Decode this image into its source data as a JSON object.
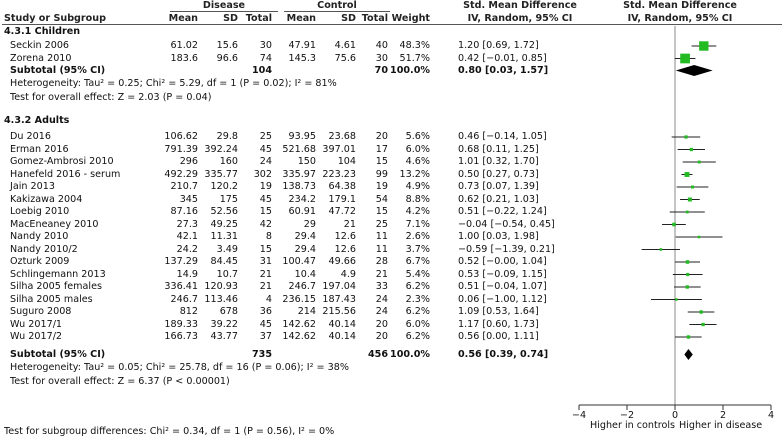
{
  "headers": {
    "group_disease": "Disease",
    "group_control": "Control",
    "study": "Study or Subgroup",
    "mean1": "Mean",
    "sd1": "SD",
    "total1": "Total",
    "mean2": "Mean",
    "sd2": "SD",
    "total2": "Total",
    "weight": "Weight",
    "smd_title": "Std. Mean Difference",
    "smd_sub": "IV, Random, 95% CI",
    "plot_title": "Std. Mean Difference",
    "plot_sub": "IV, Random, 95% CI"
  },
  "subgroups": [
    {
      "name": "4.3.1 Children",
      "studies": [
        {
          "study": "Seckin 2006",
          "m1": "61.02",
          "sd1": "15.6",
          "n1": "30",
          "m2": "47.91",
          "sd2": "4.61",
          "n2": "40",
          "weight": "48.3%",
          "ci": "1.20 [0.69, 1.72]"
        },
        {
          "study": "Zorena 2010",
          "m1": "183.6",
          "sd1": "96.6",
          "n1": "74",
          "m2": "145.3",
          "sd2": "75.6",
          "n2": "30",
          "weight": "51.7%",
          "ci": "0.42 [−0.01, 0.85]"
        }
      ],
      "subtotal": {
        "label": "Subtotal (95% CI)",
        "n1": "104",
        "n2": "70",
        "weight": "100.0%",
        "ci": "0.80 [0.03, 1.57]"
      },
      "heterogeneity": "Heterogeneity: Tau² = 0.25; Chi² = 5.29, df = 1 (P = 0.02); I² = 81%",
      "overall": "Test for overall effect: Z = 2.03 (P = 0.04)"
    },
    {
      "name": "4.3.2 Adults",
      "studies": [
        {
          "study": "Du 2016",
          "m1": "106.62",
          "sd1": "29.8",
          "n1": "25",
          "m2": "93.95",
          "sd2": "23.68",
          "n2": "20",
          "weight": "5.6%",
          "ci": "0.46 [−0.14, 1.05]"
        },
        {
          "study": "Erman 2016",
          "m1": "791.39",
          "sd1": "392.24",
          "n1": "45",
          "m2": "521.68",
          "sd2": "397.01",
          "n2": "17",
          "weight": "6.0%",
          "ci": "0.68 [0.11, 1.25]"
        },
        {
          "study": "Gomez-Ambrosi 2010",
          "m1": "296",
          "sd1": "160",
          "n1": "24",
          "m2": "150",
          "sd2": "104",
          "n2": "15",
          "weight": "4.6%",
          "ci": "1.01 [0.32, 1.70]"
        },
        {
          "study": "Hanefeld 2016 - serum",
          "m1": "492.29",
          "sd1": "335.77",
          "n1": "302",
          "m2": "335.97",
          "sd2": "223.23",
          "n2": "99",
          "weight": "13.2%",
          "ci": "0.50 [0.27, 0.73]"
        },
        {
          "study": "Jain 2013",
          "m1": "210.7",
          "sd1": "120.2",
          "n1": "19",
          "m2": "138.73",
          "sd2": "64.38",
          "n2": "19",
          "weight": "4.9%",
          "ci": "0.73 [0.07, 1.39]"
        },
        {
          "study": "Kakizawa 2004",
          "m1": "345",
          "sd1": "175",
          "n1": "45",
          "m2": "234.2",
          "sd2": "179.1",
          "n2": "54",
          "weight": "8.8%",
          "ci": "0.62 [0.21, 1.03]"
        },
        {
          "study": "Loebig 2010",
          "m1": "87.16",
          "sd1": "52.56",
          "n1": "15",
          "m2": "60.91",
          "sd2": "47.72",
          "n2": "15",
          "weight": "4.2%",
          "ci": "0.51 [−0.22, 1.24]"
        },
        {
          "study": "MacEneaney 2010",
          "m1": "27.3",
          "sd1": "49.25",
          "n1": "42",
          "m2": "29",
          "sd2": "21",
          "n2": "25",
          "weight": "7.1%",
          "ci": "−0.04 [−0.54, 0.45]"
        },
        {
          "study": "Nandy 2010",
          "m1": "42.1",
          "sd1": "11.31",
          "n1": "8",
          "m2": "29.4",
          "sd2": "12.6",
          "n2": "11",
          "weight": "2.6%",
          "ci": "1.00 [0.03, 1.98]"
        },
        {
          "study": "Nandy 2010/2",
          "m1": "24.2",
          "sd1": "3.49",
          "n1": "15",
          "m2": "29.4",
          "sd2": "12.6",
          "n2": "11",
          "weight": "3.7%",
          "ci": "−0.59 [−1.39, 0.21]"
        },
        {
          "study": "Ozturk 2009",
          "m1": "137.29",
          "sd1": "84.45",
          "n1": "31",
          "m2": "100.47",
          "sd2": "49.66",
          "n2": "28",
          "weight": "6.7%",
          "ci": "0.52 [−0.00, 1.04]"
        },
        {
          "study": "Schlingemann 2013",
          "m1": "14.9",
          "sd1": "10.7",
          "n1": "21",
          "m2": "10.4",
          "sd2": "4.9",
          "n2": "21",
          "weight": "5.4%",
          "ci": "0.53 [−0.09, 1.15]"
        },
        {
          "study": "Silha 2005 females",
          "m1": "336.41",
          "sd1": "120.93",
          "n1": "21",
          "m2": "246.7",
          "sd2": "197.04",
          "n2": "33",
          "weight": "6.2%",
          "ci": "0.51 [−0.04, 1.07]"
        },
        {
          "study": "Silha 2005 males",
          "m1": "246.7",
          "sd1": "113.46",
          "n1": "4",
          "m2": "236.15",
          "sd2": "187.43",
          "n2": "24",
          "weight": "2.3%",
          "ci": "0.06 [−1.00, 1.12]"
        },
        {
          "study": "Suguro 2008",
          "m1": "812",
          "sd1": "678",
          "n1": "36",
          "m2": "214",
          "sd2": "215.56",
          "n2": "24",
          "weight": "6.2%",
          "ci": "1.09 [0.53, 1.64]"
        },
        {
          "study": "Wu 2017/1",
          "m1": "189.33",
          "sd1": "39.22",
          "n1": "45",
          "m2": "142.62",
          "sd2": "40.14",
          "n2": "20",
          "weight": "6.0%",
          "ci": "1.17 [0.60, 1.73]"
        },
        {
          "study": "Wu 2017/2",
          "m1": "166.73",
          "sd1": "43.77",
          "n1": "37",
          "m2": "142.62",
          "sd2": "40.14",
          "n2": "20",
          "weight": "6.2%",
          "ci": "0.56 [0.00, 1.11]"
        }
      ],
      "subtotal": {
        "label": "Subtotal (95% CI)",
        "n1": "735",
        "n2": "456",
        "weight": "100.0%",
        "ci": "0.56 [0.39, 0.74]"
      },
      "heterogeneity": "Heterogeneity: Tau² = 0.05; Chi² = 25.78, df = 16 (P = 0.06); I² = 38%",
      "overall": "Test for overall effect: Z = 6.37 (P < 0.00001)"
    }
  ],
  "subgroup_test": "Test for subgroup differences: Chi² = 0.34, df = 1 (P = 0.56), I² = 0%",
  "chart_data": {
    "type": "forest",
    "xlim": [
      -4,
      4
    ],
    "ticks": [
      -4,
      -2,
      0,
      2,
      4
    ],
    "tick_labels": [
      "−4",
      "−2",
      "0",
      "2",
      "4"
    ],
    "xlabel_left": "Higher in controls",
    "xlabel_right": "Higher in disease",
    "study_color": "#22bb22",
    "diamond_color": "#000000",
    "points": [
      {
        "group": 0,
        "row": 0,
        "est": 1.2,
        "lo": 0.69,
        "hi": 1.72,
        "w": 48.3
      },
      {
        "group": 0,
        "row": 1,
        "est": 0.42,
        "lo": -0.01,
        "hi": 0.85,
        "w": 51.7
      },
      {
        "group": 1,
        "row": 0,
        "est": 0.46,
        "lo": -0.14,
        "hi": 1.05,
        "w": 5.6
      },
      {
        "group": 1,
        "row": 1,
        "est": 0.68,
        "lo": 0.11,
        "hi": 1.25,
        "w": 6.0
      },
      {
        "group": 1,
        "row": 2,
        "est": 1.01,
        "lo": 0.32,
        "hi": 1.7,
        "w": 4.6
      },
      {
        "group": 1,
        "row": 3,
        "est": 0.5,
        "lo": 0.27,
        "hi": 0.73,
        "w": 13.2
      },
      {
        "group": 1,
        "row": 4,
        "est": 0.73,
        "lo": 0.07,
        "hi": 1.39,
        "w": 4.9
      },
      {
        "group": 1,
        "row": 5,
        "est": 0.62,
        "lo": 0.21,
        "hi": 1.03,
        "w": 8.8
      },
      {
        "group": 1,
        "row": 6,
        "est": 0.51,
        "lo": -0.22,
        "hi": 1.24,
        "w": 4.2
      },
      {
        "group": 1,
        "row": 7,
        "est": -0.04,
        "lo": -0.54,
        "hi": 0.45,
        "w": 7.1
      },
      {
        "group": 1,
        "row": 8,
        "est": 1.0,
        "lo": 0.03,
        "hi": 1.98,
        "w": 2.6
      },
      {
        "group": 1,
        "row": 9,
        "est": -0.59,
        "lo": -1.39,
        "hi": 0.21,
        "w": 3.7
      },
      {
        "group": 1,
        "row": 10,
        "est": 0.52,
        "lo": 0.0,
        "hi": 1.04,
        "w": 6.7
      },
      {
        "group": 1,
        "row": 11,
        "est": 0.53,
        "lo": -0.09,
        "hi": 1.15,
        "w": 5.4
      },
      {
        "group": 1,
        "row": 12,
        "est": 0.51,
        "lo": -0.04,
        "hi": 1.07,
        "w": 6.2
      },
      {
        "group": 1,
        "row": 13,
        "est": 0.06,
        "lo": -1.0,
        "hi": 1.12,
        "w": 2.3
      },
      {
        "group": 1,
        "row": 14,
        "est": 1.09,
        "lo": 0.53,
        "hi": 1.64,
        "w": 6.2
      },
      {
        "group": 1,
        "row": 15,
        "est": 1.17,
        "lo": 0.6,
        "hi": 1.73,
        "w": 6.0
      },
      {
        "group": 1,
        "row": 16,
        "est": 0.56,
        "lo": 0.0,
        "hi": 1.11,
        "w": 6.2
      }
    ],
    "diamonds": [
      {
        "group": 0,
        "est": 0.8,
        "lo": 0.03,
        "hi": 1.57
      },
      {
        "group": 1,
        "est": 0.56,
        "lo": 0.39,
        "hi": 0.74
      }
    ]
  }
}
